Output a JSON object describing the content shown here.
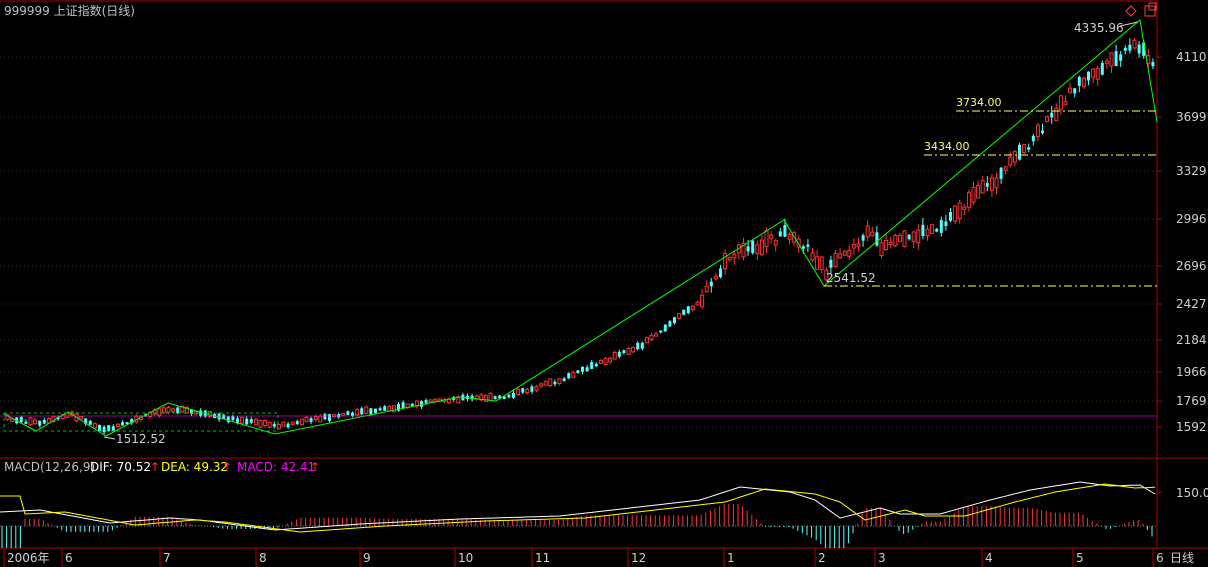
{
  "chart_data": [
    {
      "type": "candlestick",
      "title": "999999 上证指数(日线)",
      "y_ticks": [
        "4110",
        "3699",
        "3329",
        "2996",
        "2696",
        "2427",
        "2184",
        "1966",
        "1769",
        "1592"
      ],
      "x_ticks": [
        "2006年",
        "6",
        "7",
        "8",
        "9",
        "10",
        "11",
        "12",
        "1",
        "2",
        "3",
        "4",
        "5",
        "6"
      ],
      "period_label": "日线",
      "annotations": {
        "high": "4335.96",
        "low_left": "1512.52",
        "low_mid": "2541.52",
        "level_upper": "3734.00",
        "level_lower": "3434.00"
      },
      "swing_points": [
        {
          "x": "2006-05",
          "y": 1700
        },
        {
          "x": "2006-06",
          "y": 1600
        },
        {
          "x": "2006-06",
          "y": 1700
        },
        {
          "x": "2006-06",
          "y": 1570
        },
        {
          "x": "2006-07",
          "y": 1760
        },
        {
          "x": "2006-07",
          "y": 1700
        },
        {
          "x": "2006-08",
          "y": 1560
        },
        {
          "x": "2006-10",
          "y": 1780
        },
        {
          "x": "2006-10",
          "y": 1755
        },
        {
          "x": "2007-02",
          "y": 2980
        },
        {
          "x": "2007-02",
          "y": 2541.52
        },
        {
          "x": "2007-05",
          "y": 4335.96
        },
        {
          "x": "2007-06",
          "y": 3600
        }
      ],
      "ylim": [
        1500,
        4400
      ]
    },
    {
      "type": "line",
      "title": "MACD(12,26,9)",
      "legend": [
        {
          "label": "DIF: 70.52",
          "color": "#ffffff"
        },
        {
          "label": "DEA: 49.32",
          "color": "#ffff00"
        },
        {
          "label": "MACD: 42.41",
          "color": "#ff00ff"
        }
      ],
      "y_ticks": [
        "150.0"
      ]
    }
  ]
}
